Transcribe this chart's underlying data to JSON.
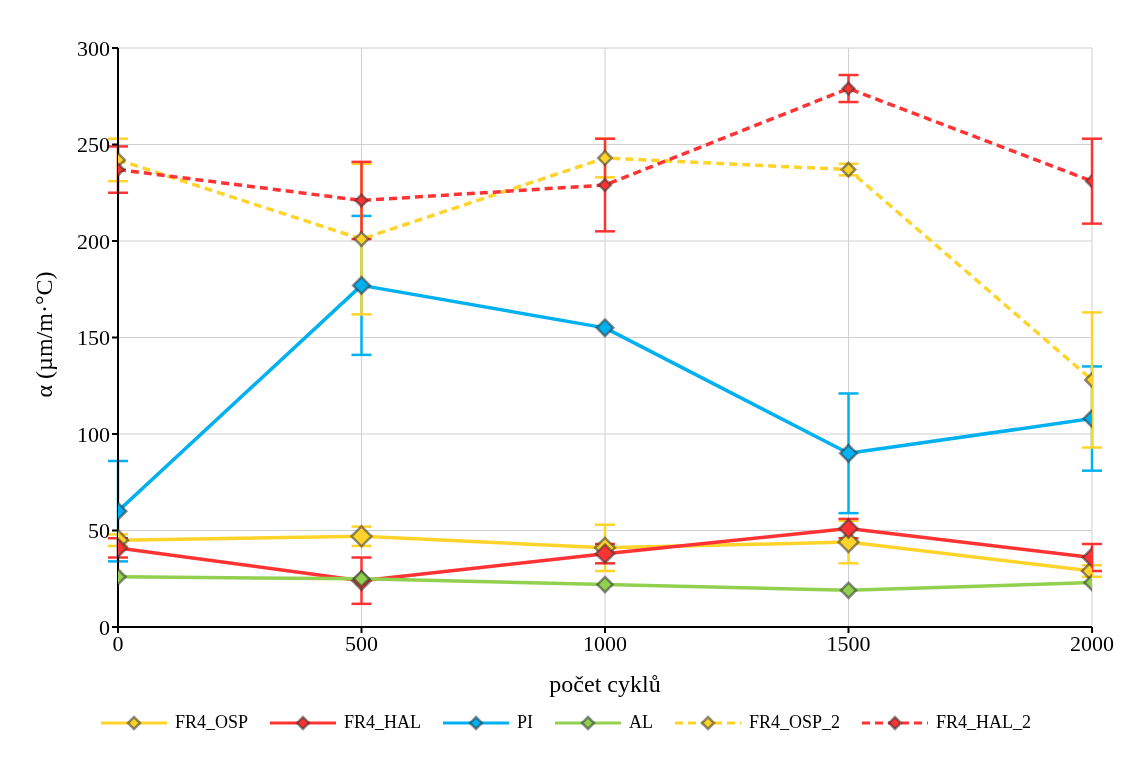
{
  "chart_data": {
    "type": "line",
    "xlabel": "počet cyklů",
    "ylabel": "α (µm/m·°C)",
    "x": [
      0,
      500,
      1000,
      1500,
      2000
    ],
    "xlim": [
      0,
      2000
    ],
    "xticks": [
      0,
      500,
      1000,
      1500,
      2000
    ],
    "ylim": [
      0,
      300
    ],
    "yticks": [
      0,
      50,
      100,
      150,
      200,
      250,
      300
    ],
    "grid": true,
    "legend": "bottom",
    "marker": "diamond",
    "series": [
      {
        "name": "FR4_OSP",
        "color": "#ffd42a",
        "line_style": "solid",
        "values": [
          45,
          47,
          41,
          44,
          29
        ],
        "errors": [
          3,
          5,
          12,
          11,
          3
        ]
      },
      {
        "name": "FR4_HAL",
        "color": "#ff3333",
        "line_style": "solid",
        "values": [
          41,
          24,
          38,
          51,
          36
        ],
        "errors": [
          5,
          12,
          5,
          5,
          7
        ]
      },
      {
        "name": "PI",
        "color": "#00b0f0",
        "line_style": "solid",
        "values": [
          60,
          177,
          155,
          90,
          108
        ],
        "errors": [
          26,
          36,
          null,
          31,
          27
        ]
      },
      {
        "name": "AL",
        "color": "#92d050",
        "line_style": "solid",
        "values": [
          26,
          25,
          22,
          19,
          23
        ]
      },
      {
        "name": "FR4_OSP_2",
        "color": "#ffd42a",
        "line_style": "dashed",
        "values": [
          242,
          201,
          243,
          237,
          128
        ],
        "errors": [
          11,
          39,
          10,
          3,
          35
        ]
      },
      {
        "name": "FR4_HAL_2",
        "color": "#ff3333",
        "line_style": "dashed",
        "values": [
          237,
          221,
          229,
          279,
          231
        ],
        "errors": [
          12,
          20,
          24,
          7,
          22
        ]
      }
    ]
  }
}
